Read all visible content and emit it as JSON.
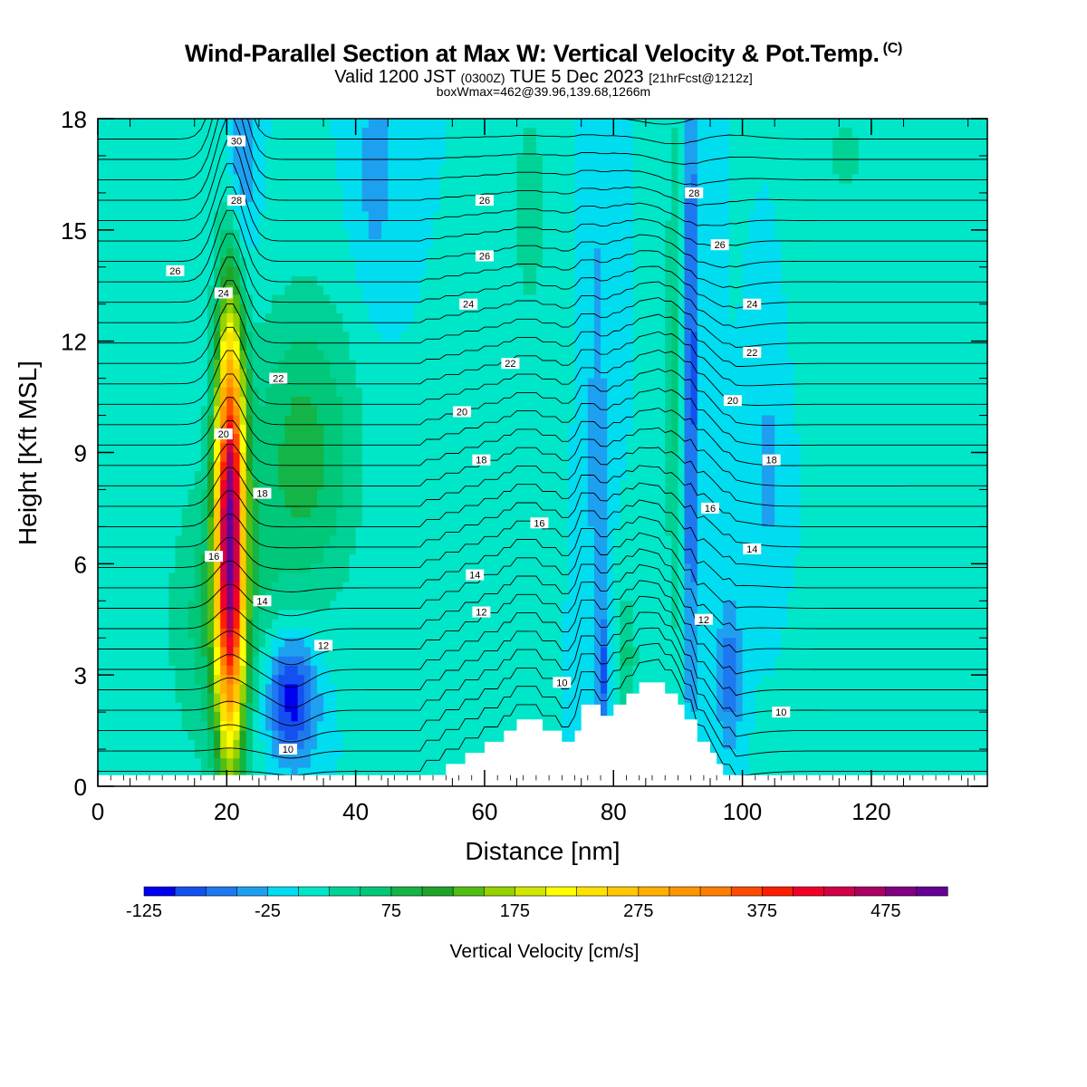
{
  "title": "Wind-Parallel Section at Max W: Vertical Velocity & Pot.Temp.",
  "title_unit": "(C)",
  "subtitle_a": "Valid 1200 JST",
  "subtitle_b": "(0300Z)",
  "subtitle_c": "TUE 5 Dec 2023",
  "subtitle_d": "[21hrFcst@1212z]",
  "subsubtitle": "boxWmax=462@39.96,139.68,1266m",
  "chart_data": {
    "type": "heatmap",
    "xlabel": "Distance [nm]",
    "ylabel": "Height [Kft MSL]",
    "xlim": [
      0,
      138
    ],
    "ylim": [
      0,
      18
    ],
    "xticks": [
      0,
      20,
      40,
      60,
      80,
      100,
      120
    ],
    "yticks": [
      0,
      3,
      6,
      9,
      12,
      15,
      18
    ],
    "background_value": 0,
    "features": [
      {
        "name": "main updraft",
        "x": 20.5,
        "y": 7.0,
        "sx": 1.6,
        "sy": 4.2,
        "value": 462
      },
      {
        "name": "updraft base broad",
        "x": 19.0,
        "y": 4.5,
        "sx": 5.5,
        "sy": 2.8,
        "value": 70
      },
      {
        "name": "broad upper updraft",
        "x": 32.0,
        "y": 9.0,
        "sx": 6.0,
        "sy": 3.0,
        "value": 85
      },
      {
        "name": "low-level downdraft",
        "x": 30.0,
        "y": 2.4,
        "sx": 2.8,
        "sy": 1.2,
        "value": -125
      },
      {
        "name": "upper downdraft",
        "x": 22.0,
        "y": 16.5,
        "sx": 1.6,
        "sy": 2.0,
        "value": -60
      },
      {
        "name": "thin downdraft",
        "x": 92.0,
        "y": 11.0,
        "sx": 0.9,
        "sy": 6.0,
        "value": -90
      },
      {
        "name": "thin updraft",
        "x": 89.5,
        "y": 11.0,
        "sx": 1.0,
        "sy": 5.5,
        "value": 55
      },
      {
        "name": "downdraft band",
        "x": 77.5,
        "y": 9.0,
        "sx": 1.0,
        "sy": 5.0,
        "value": -45
      },
      {
        "name": "downdraft 98",
        "x": 98.0,
        "y": 3.0,
        "sx": 1.4,
        "sy": 1.4,
        "value": -70
      },
      {
        "name": "downdraft 104",
        "x": 104.0,
        "y": 8.5,
        "sx": 0.8,
        "sy": 1.8,
        "value": -45
      },
      {
        "name": "lee wave up",
        "x": 82.0,
        "y": 3.5,
        "sx": 1.2,
        "sy": 1.2,
        "value": 55
      },
      {
        "name": "lee wave down",
        "x": 78.5,
        "y": 3.0,
        "sx": 0.7,
        "sy": 1.2,
        "value": -70
      },
      {
        "name": "upper updraft 68",
        "x": 67.0,
        "y": 15.5,
        "sx": 2.0,
        "sy": 2.5,
        "value": 40
      },
      {
        "name": "upper downdraft 43",
        "x": 43.0,
        "y": 16.5,
        "sx": 2.5,
        "sy": 2.5,
        "value": -35
      },
      {
        "name": "upper updraft 117",
        "x": 116.0,
        "y": 17.0,
        "sx": 3.0,
        "sy": 1.5,
        "value": 30
      },
      {
        "name": "surface updraft right",
        "x": 124.0,
        "y": 0.8,
        "sx": 10.0,
        "sy": 1.0,
        "value": 25
      }
    ],
    "terrain": [
      [
        50,
        0
      ],
      [
        51,
        0.3
      ],
      [
        54,
        0.3
      ],
      [
        54,
        0.6
      ],
      [
        57,
        0.6
      ],
      [
        57,
        0.9
      ],
      [
        60,
        0.9
      ],
      [
        60,
        1.2
      ],
      [
        63,
        1.2
      ],
      [
        63,
        1.5
      ],
      [
        65,
        1.5
      ],
      [
        65,
        1.8
      ],
      [
        69,
        1.8
      ],
      [
        69,
        1.5
      ],
      [
        72,
        1.5
      ],
      [
        72,
        1.2
      ],
      [
        74,
        1.2
      ],
      [
        74,
        1.5
      ],
      [
        75,
        1.5
      ],
      [
        75,
        2.2
      ],
      [
        78,
        2.2
      ],
      [
        78,
        1.9
      ],
      [
        80,
        1.9
      ],
      [
        80,
        2.2
      ],
      [
        82,
        2.2
      ],
      [
        82,
        2.5
      ],
      [
        84,
        2.5
      ],
      [
        84,
        2.8
      ],
      [
        88,
        2.8
      ],
      [
        88,
        2.5
      ],
      [
        90,
        2.5
      ],
      [
        90,
        2.2
      ],
      [
        91,
        2.2
      ],
      [
        91,
        1.8
      ],
      [
        93,
        1.8
      ],
      [
        93,
        1.2
      ],
      [
        95,
        1.2
      ],
      [
        95,
        0.9
      ],
      [
        96,
        0.9
      ],
      [
        96,
        0.6
      ],
      [
        97,
        0.6
      ],
      [
        97,
        0.3
      ],
      [
        99,
        0.3
      ],
      [
        99,
        0
      ]
    ],
    "contours": {
      "variable": "Potential Temperature (C)",
      "levels": [
        8,
        9,
        10,
        11,
        12,
        13,
        14,
        15,
        16,
        17,
        18,
        19,
        20,
        21,
        22,
        23,
        24,
        25,
        26,
        27,
        28,
        29,
        30
      ],
      "labels": [
        {
          "text": "30",
          "x": 21.5,
          "y": 17.4
        },
        {
          "text": "28",
          "x": 21.5,
          "y": 15.8
        },
        {
          "text": "26",
          "x": 12.0,
          "y": 13.9
        },
        {
          "text": "24",
          "x": 19.5,
          "y": 13.3
        },
        {
          "text": "22",
          "x": 28.0,
          "y": 11.0
        },
        {
          "text": "20",
          "x": 19.5,
          "y": 9.5
        },
        {
          "text": "18",
          "x": 25.5,
          "y": 7.9
        },
        {
          "text": "16",
          "x": 18.0,
          "y": 6.2
        },
        {
          "text": "14",
          "x": 25.5,
          "y": 5.0
        },
        {
          "text": "12",
          "x": 35.0,
          "y": 3.8
        },
        {
          "text": "10",
          "x": 29.5,
          "y": 1.0
        },
        {
          "text": "26",
          "x": 60.0,
          "y": 15.8
        },
        {
          "text": "26",
          "x": 60.0,
          "y": 14.3
        },
        {
          "text": "24",
          "x": 57.5,
          "y": 13.0
        },
        {
          "text": "22",
          "x": 64.0,
          "y": 11.4
        },
        {
          "text": "20",
          "x": 56.5,
          "y": 10.1
        },
        {
          "text": "18",
          "x": 59.5,
          "y": 8.8
        },
        {
          "text": "16",
          "x": 68.5,
          "y": 7.1
        },
        {
          "text": "14",
          "x": 58.5,
          "y": 5.7
        },
        {
          "text": "12",
          "x": 59.5,
          "y": 4.7
        },
        {
          "text": "10",
          "x": 72.0,
          "y": 2.8
        },
        {
          "text": "28",
          "x": 92.5,
          "y": 16.0
        },
        {
          "text": "26",
          "x": 96.5,
          "y": 14.6
        },
        {
          "text": "24",
          "x": 101.5,
          "y": 13.0
        },
        {
          "text": "22",
          "x": 101.5,
          "y": 11.7
        },
        {
          "text": "20",
          "x": 98.5,
          "y": 10.4
        },
        {
          "text": "18",
          "x": 104.5,
          "y": 8.8
        },
        {
          "text": "16",
          "x": 95.0,
          "y": 7.5
        },
        {
          "text": "14",
          "x": 101.5,
          "y": 6.4
        },
        {
          "text": "12",
          "x": 94.0,
          "y": 4.5
        },
        {
          "text": "10",
          "x": 106.0,
          "y": 2.0
        }
      ]
    },
    "colorbar": {
      "title": "Vertical Velocity [cm/s]",
      "min": -125,
      "max": 525,
      "step": 25,
      "tick_labels": [
        "-125",
        "-25",
        "75",
        "175",
        "275",
        "375",
        "475"
      ],
      "colors": [
        "#0000f0",
        "#1450f0",
        "#1e78f0",
        "#1ea0f0",
        "#00dcf0",
        "#00e6c8",
        "#00d296",
        "#00c878",
        "#14b446",
        "#1ea528",
        "#50be14",
        "#96d200",
        "#d2e600",
        "#ffff00",
        "#ffe100",
        "#ffc800",
        "#ffaf00",
        "#ff9600",
        "#ff7d00",
        "#ff4b00",
        "#ff1e00",
        "#f00028",
        "#d20046",
        "#aa0064",
        "#820082",
        "#640096"
      ]
    }
  }
}
